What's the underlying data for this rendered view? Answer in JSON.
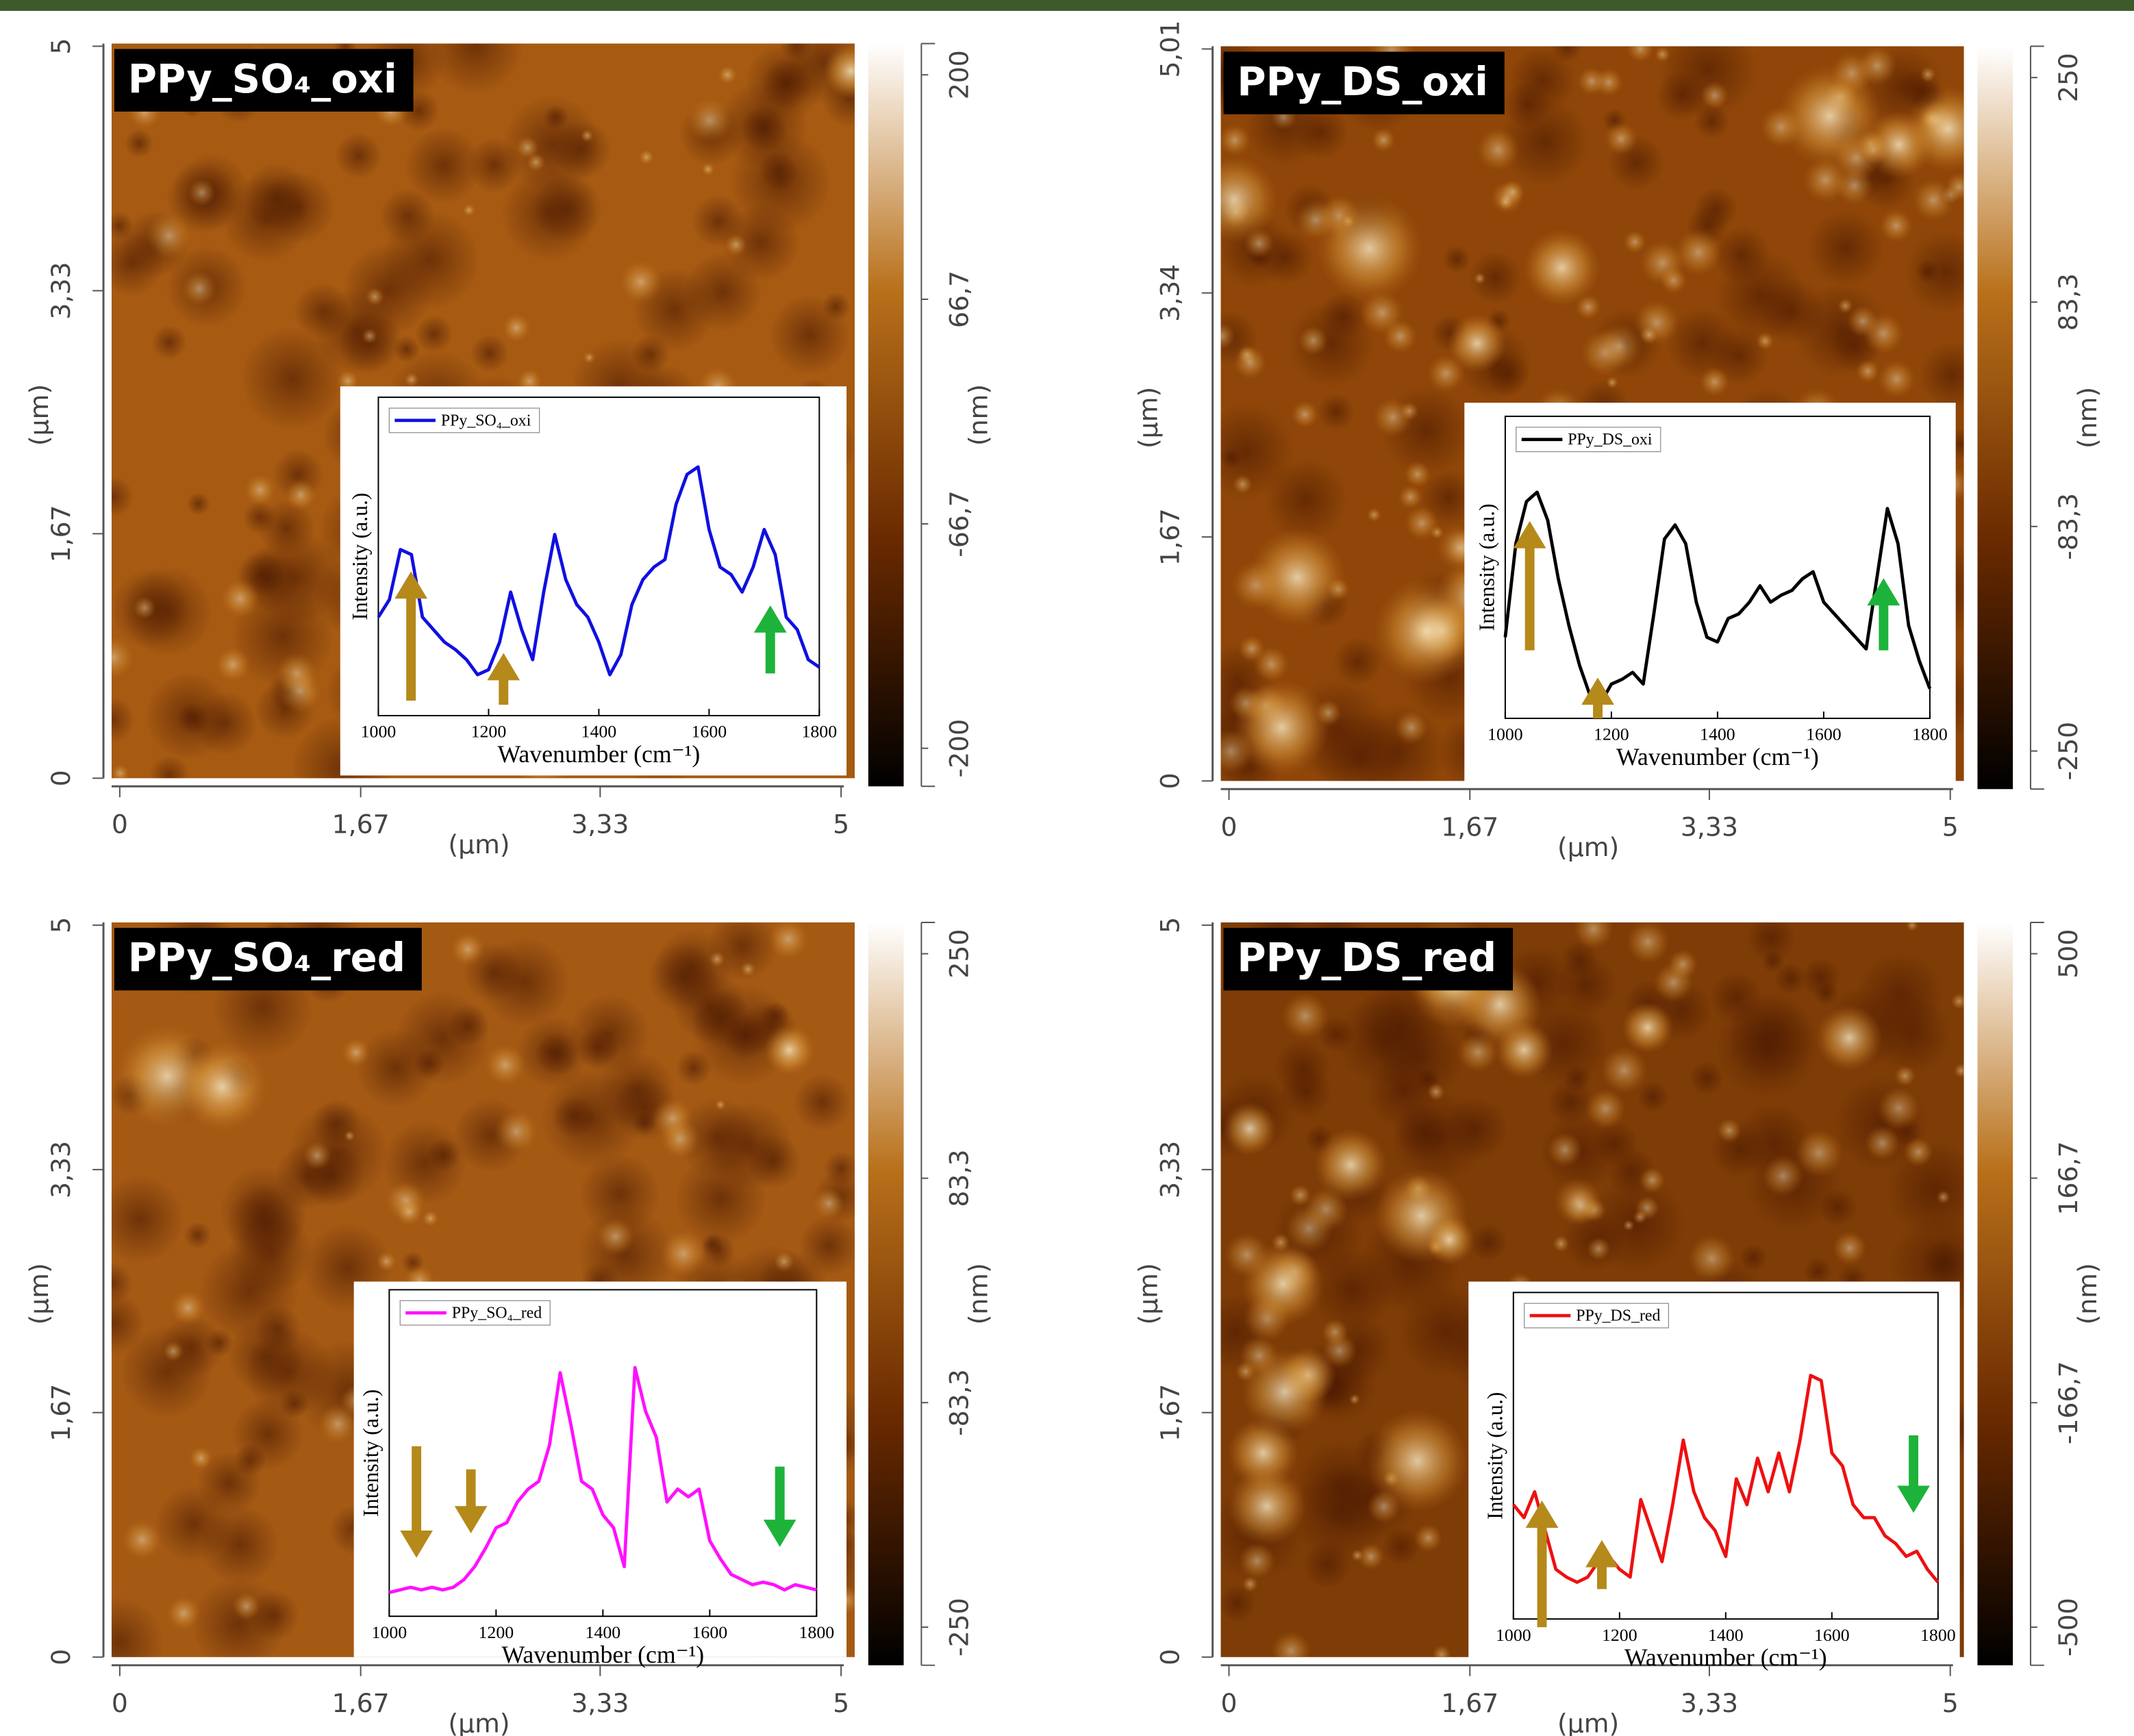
{
  "chart_data": [
    {
      "type": "image",
      "title": "PPy_SO₄_oxi",
      "x_label": "(µm)",
      "y_label": "(µm)",
      "clabel": "(nm)",
      "xlim": [
        0,
        5
      ],
      "ylim": [
        0,
        5
      ],
      "xticks": [
        0,
        {
          "value": 1.67,
          "label": "1,67"
        },
        {
          "value": 3.33,
          "label": "3,33"
        },
        5
      ],
      "yticks": [
        0,
        {
          "value": 1.67,
          "label": "1,67"
        },
        {
          "value": 3.33,
          "label": "3,33"
        },
        5
      ],
      "clim": [
        -200,
        200
      ],
      "cticks": [
        -200,
        {
          "value": -66.7,
          "label": "-66,7"
        },
        {
          "value": 66.7,
          "label": "66,7"
        },
        200
      ],
      "colormap": [
        "#000000",
        "#6a2a00",
        "#b8701a",
        "#ffffff"
      ]
    },
    {
      "type": "image",
      "title": "PPy_DS_oxi",
      "x_label": "(µm)",
      "y_label": "(µm)",
      "clabel": "(nm)",
      "xlim": [
        0,
        5
      ],
      "ylim": [
        0,
        5.01
      ],
      "xticks": [
        0,
        {
          "value": 1.67,
          "label": "1,67"
        },
        {
          "value": 3.33,
          "label": "3,33"
        },
        5
      ],
      "yticks": [
        0,
        {
          "value": 1.67,
          "label": "1,67"
        },
        {
          "value": 3.34,
          "label": "3,34"
        },
        {
          "value": 5.01,
          "label": "5,01"
        }
      ],
      "clim": [
        -250,
        250
      ],
      "cticks": [
        -250,
        {
          "value": -83.3,
          "label": "-83,3"
        },
        {
          "value": 83.3,
          "label": "83,3"
        },
        250
      ],
      "colormap": [
        "#000000",
        "#6a2a00",
        "#b8701a",
        "#ffffff"
      ]
    },
    {
      "type": "image",
      "title": "PPy_SO₄_red",
      "x_label": "(µm)",
      "y_label": "(µm)",
      "clabel": "(nm)",
      "xlim": [
        0,
        5
      ],
      "ylim": [
        0,
        5
      ],
      "xticks": [
        0,
        {
          "value": 1.67,
          "label": "1,67"
        },
        {
          "value": 3.33,
          "label": "3,33"
        },
        5
      ],
      "yticks": [
        0,
        {
          "value": 1.67,
          "label": "1,67"
        },
        {
          "value": 3.33,
          "label": "3,33"
        },
        5
      ],
      "clim": [
        -250,
        250
      ],
      "cticks": [
        -250,
        {
          "value": -83.3,
          "label": "-83,3"
        },
        {
          "value": 83.3,
          "label": "83,3"
        },
        250
      ],
      "colormap": [
        "#000000",
        "#6a2a00",
        "#b8701a",
        "#ffffff"
      ]
    },
    {
      "type": "image",
      "title": "PPy_DS_red",
      "x_label": "(µm)",
      "y_label": "(µm)",
      "clabel": "(nm)",
      "xlim": [
        0,
        5
      ],
      "ylim": [
        0,
        5
      ],
      "xticks": [
        0,
        {
          "value": 1.67,
          "label": "1,67"
        },
        {
          "value": 3.33,
          "label": "3,33"
        },
        5
      ],
      "yticks": [
        0,
        {
          "value": 1.67,
          "label": "1,67"
        },
        {
          "value": 3.33,
          "label": "3,33"
        },
        5
      ],
      "clim": [
        -500,
        500
      ],
      "cticks": [
        -500,
        {
          "value": -166.7,
          "label": "-166,7"
        },
        {
          "value": 166.7,
          "label": "166,7"
        },
        500
      ],
      "colormap": [
        "#000000",
        "#6a2a00",
        "#b8701a",
        "#ffffff"
      ]
    },
    {
      "type": "line",
      "x_label": "Wavenumber (cm⁻¹)",
      "y_label": "Intensity (a.u.)",
      "xlim": [
        1000,
        1800
      ],
      "ylim": [
        0,
        100
      ],
      "xticks": [
        1000,
        1200,
        1400,
        1600,
        1800
      ],
      "x": [
        1000,
        1020,
        1040,
        1060,
        1080,
        1100,
        1120,
        1140,
        1160,
        1180,
        1200,
        1220,
        1240,
        1260,
        1280,
        1300,
        1320,
        1340,
        1360,
        1380,
        1400,
        1420,
        1440,
        1460,
        1480,
        1500,
        1520,
        1540,
        1560,
        1580,
        1600,
        1620,
        1640,
        1660,
        1680,
        1700,
        1720,
        1740,
        1760,
        1780,
        1800
      ],
      "series": [
        {
          "name": "PPy_SO₄_oxi",
          "color": "#1010e0",
          "values": [
            35,
            42,
            62,
            60,
            35,
            30,
            25,
            22,
            18,
            12,
            14,
            25,
            45,
            30,
            18,
            45,
            68,
            50,
            40,
            35,
            25,
            12,
            20,
            40,
            50,
            55,
            58,
            80,
            92,
            95,
            70,
            55,
            52,
            45,
            55,
            70,
            60,
            35,
            30,
            18,
            15
          ]
        }
      ]
    },
    {
      "type": "line",
      "x_label": "Wavenumber (cm⁻¹)",
      "y_label": "Intensity (a.u.)",
      "xlim": [
        1000,
        1800
      ],
      "ylim": [
        0,
        100
      ],
      "xticks": [
        1000,
        1200,
        1400,
        1600,
        1800
      ],
      "x": [
        1000,
        1020,
        1040,
        1060,
        1080,
        1100,
        1120,
        1140,
        1160,
        1180,
        1200,
        1220,
        1240,
        1260,
        1280,
        1300,
        1320,
        1340,
        1360,
        1380,
        1400,
        1420,
        1440,
        1460,
        1480,
        1500,
        1520,
        1540,
        1560,
        1580,
        1600,
        1620,
        1640,
        1660,
        1680,
        1700,
        1720,
        1740,
        1760,
        1780,
        1800
      ],
      "series": [
        {
          "name": "PPy_DS_oxi",
          "color": "#000000",
          "values": [
            30,
            70,
            88,
            92,
            80,
            55,
            35,
            18,
            5,
            2,
            10,
            12,
            15,
            10,
            40,
            72,
            78,
            70,
            45,
            30,
            28,
            38,
            40,
            45,
            52,
            45,
            48,
            50,
            55,
            58,
            45,
            40,
            35,
            30,
            25,
            55,
            85,
            70,
            35,
            20,
            8
          ]
        }
      ]
    },
    {
      "type": "line",
      "x_label": "Wavenumber (cm⁻¹)",
      "y_label": "Intensity (a.u.)",
      "xlim": [
        1000,
        1800
      ],
      "ylim": [
        0,
        100
      ],
      "xticks": [
        1000,
        1200,
        1400,
        1600,
        1800
      ],
      "x": [
        1000,
        1020,
        1040,
        1060,
        1080,
        1100,
        1120,
        1140,
        1160,
        1180,
        1200,
        1220,
        1240,
        1260,
        1280,
        1300,
        1320,
        1340,
        1360,
        1380,
        1400,
        1420,
        1440,
        1460,
        1480,
        1500,
        1520,
        1540,
        1560,
        1580,
        1600,
        1620,
        1640,
        1660,
        1680,
        1700,
        1720,
        1740,
        1760,
        1780,
        1800
      ],
      "series": [
        {
          "name": "PPy_SO₄_red",
          "color": "#ff10ff",
          "values": [
            5,
            6,
            7,
            6,
            7,
            6,
            7,
            10,
            15,
            22,
            30,
            32,
            40,
            45,
            48,
            62,
            90,
            70,
            48,
            45,
            35,
            30,
            15,
            92,
            75,
            65,
            40,
            45,
            42,
            45,
            25,
            18,
            12,
            10,
            8,
            9,
            8,
            6,
            8,
            7,
            6
          ]
        }
      ]
    },
    {
      "type": "line",
      "x_label": "Wavenumber (cm⁻¹)",
      "y_label": "Intensity (a.u.)",
      "xlim": [
        1000,
        1800
      ],
      "ylim": [
        0,
        100
      ],
      "xticks": [
        1000,
        1200,
        1400,
        1600,
        1800
      ],
      "x": [
        1000,
        1020,
        1040,
        1060,
        1080,
        1100,
        1120,
        1140,
        1160,
        1180,
        1200,
        1220,
        1240,
        1260,
        1280,
        1300,
        1320,
        1340,
        1360,
        1380,
        1400,
        1420,
        1440,
        1460,
        1480,
        1500,
        1520,
        1540,
        1560,
        1580,
        1600,
        1620,
        1640,
        1660,
        1680,
        1700,
        1720,
        1740,
        1760,
        1780,
        1800
      ],
      "series": [
        {
          "name": "PPy_DS_red",
          "color": "#ee1010",
          "values": [
            40,
            35,
            45,
            30,
            15,
            12,
            10,
            12,
            18,
            20,
            15,
            12,
            42,
            30,
            18,
            40,
            65,
            45,
            35,
            30,
            20,
            50,
            40,
            58,
            45,
            60,
            45,
            65,
            90,
            88,
            60,
            55,
            40,
            35,
            35,
            28,
            25,
            20,
            22,
            15,
            10
          ]
        }
      ]
    }
  ]
}
